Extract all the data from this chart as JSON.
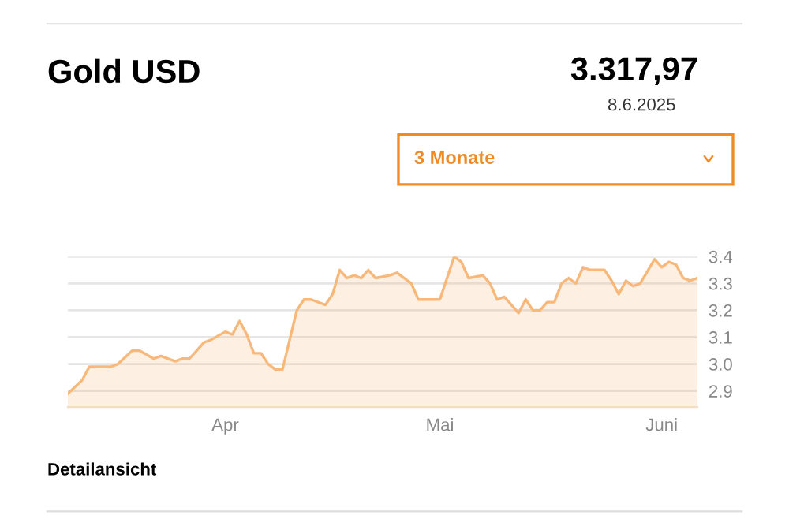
{
  "chart_data": {
    "type": "area",
    "title": "Gold USD",
    "annotations": [
      "3.317,97",
      "8.6.2025",
      "3 Monate",
      "Detailansicht"
    ],
    "x": [
      "2025-03-10",
      "2025-03-12",
      "2025-03-13",
      "2025-03-16",
      "2025-03-17",
      "2025-03-19",
      "2025-03-20",
      "2025-03-22",
      "2025-03-23",
      "2025-03-25",
      "2025-03-26",
      "2025-03-27",
      "2025-03-29",
      "2025-03-30",
      "2025-04-01",
      "2025-04-02",
      "2025-04-03",
      "2025-04-04",
      "2025-04-05",
      "2025-04-06",
      "2025-04-07",
      "2025-04-08",
      "2025-04-09",
      "2025-04-11",
      "2025-04-12",
      "2025-04-13",
      "2025-04-15",
      "2025-04-16",
      "2025-04-17",
      "2025-04-18",
      "2025-04-19",
      "2025-04-20",
      "2025-04-21",
      "2025-04-22",
      "2025-04-24",
      "2025-04-25",
      "2025-04-27",
      "2025-04-28",
      "2025-05-01",
      "2025-05-02",
      "2025-05-03",
      "2025-05-04",
      "2025-05-05",
      "2025-05-07",
      "2025-05-08",
      "2025-05-09",
      "2025-05-10",
      "2025-05-12",
      "2025-05-13",
      "2025-05-14",
      "2025-05-15",
      "2025-05-16",
      "2025-05-17",
      "2025-05-18",
      "2025-05-19",
      "2025-05-20",
      "2025-05-21",
      "2025-05-22",
      "2025-05-23",
      "2025-05-24",
      "2025-05-25",
      "2025-05-26",
      "2025-05-27",
      "2025-05-28",
      "2025-05-29",
      "2025-05-31",
      "2025-06-01",
      "2025-06-02",
      "2025-06-03",
      "2025-06-04",
      "2025-06-05",
      "2025-06-06"
    ],
    "series": [
      {
        "color": "#f7b87a",
        "values": [
          2.89,
          2.94,
          2.99,
          2.99,
          3.0,
          3.05,
          3.05,
          3.02,
          3.03,
          3.01,
          3.02,
          3.02,
          3.08,
          3.09,
          3.12,
          3.11,
          3.16,
          3.11,
          3.04,
          3.04,
          3.0,
          2.98,
          2.98,
          3.2,
          3.24,
          3.24,
          3.22,
          3.26,
          3.35,
          3.32,
          3.33,
          3.32,
          3.35,
          3.32,
          3.33,
          3.34,
          3.3,
          3.24,
          3.24,
          3.32,
          3.4,
          3.38,
          3.32,
          3.33,
          3.3,
          3.24,
          3.25,
          3.19,
          3.24,
          3.2,
          3.2,
          3.23,
          3.23,
          3.3,
          3.32,
          3.3,
          3.36,
          3.35,
          3.35,
          3.35,
          3.31,
          3.26,
          3.31,
          3.29,
          3.3,
          3.39,
          3.36,
          3.38,
          3.37,
          3.32,
          3.31,
          3.32
        ]
      }
    ],
    "xlim": [
      "2025-03-10",
      "2025-06-06"
    ],
    "xticks": [
      {
        "value": "2025-04-01",
        "label": "Apr"
      },
      {
        "value": "2025-05-01",
        "label": "Mai"
      },
      {
        "value": "2025-06-01",
        "label": "Juni"
      }
    ],
    "ylim": [
      2.84,
      3.4
    ],
    "yticks": [
      2.9,
      {
        "value": 3.0,
        "label": "3.0"
      },
      3.1,
      3.2,
      3.3,
      3.4
    ],
    "grid": "y"
  }
}
